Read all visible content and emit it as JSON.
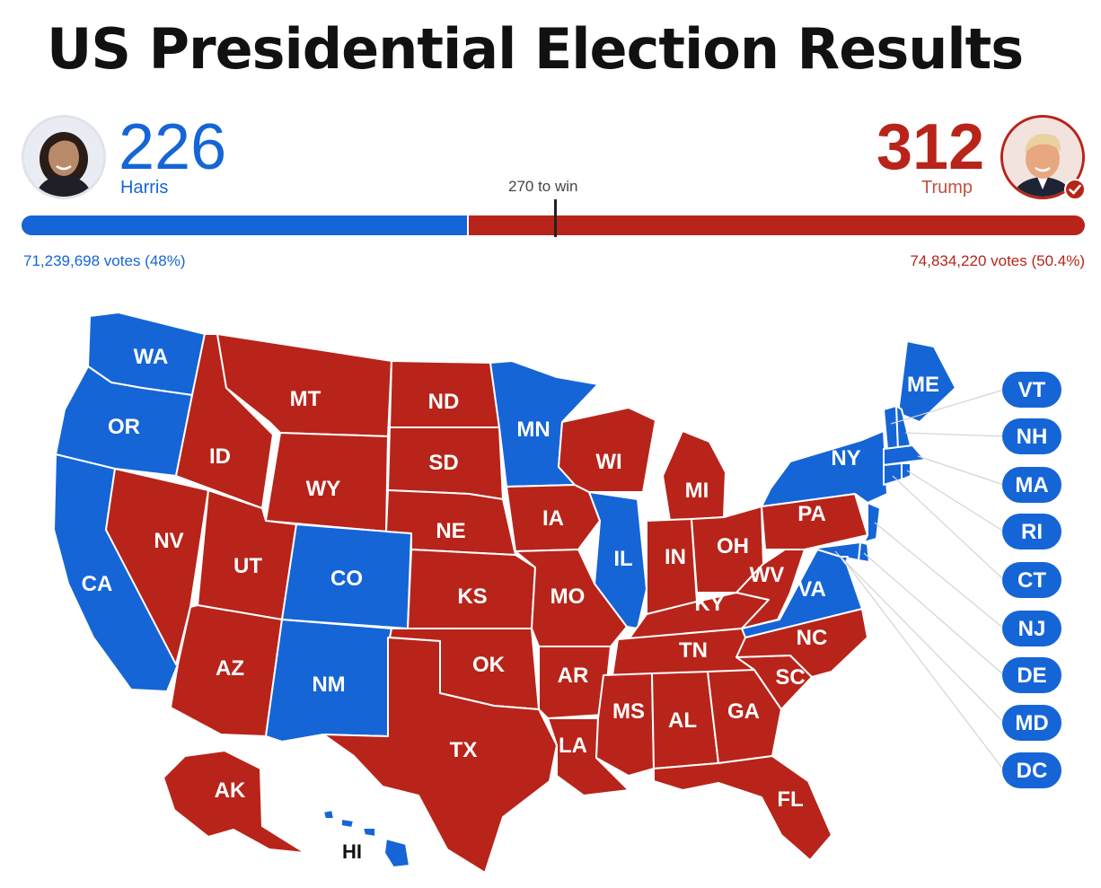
{
  "title": "US Presidential Election Results",
  "threshold_label": "270 to win",
  "colors": {
    "democrat": "#1565d6",
    "republican": "#b8241a"
  },
  "candidates": {
    "harris": {
      "name": "Harris",
      "electoral_votes": "226",
      "popular_votes": "71,239,698 votes (48%)"
    },
    "trump": {
      "name": "Trump",
      "electoral_votes": "312",
      "popular_votes": "74,834,220 votes (50.4%)",
      "winner_badge": "checkmark-icon"
    }
  },
  "states": {
    "WA": "D",
    "OR": "D",
    "CA": "D",
    "NV": "R",
    "ID": "R",
    "MT": "R",
    "WY": "R",
    "UT": "R",
    "AZ": "R",
    "CO": "D",
    "NM": "D",
    "ND": "R",
    "SD": "R",
    "NE": "R",
    "KS": "R",
    "OK": "R",
    "TX": "R",
    "MN": "D",
    "IA": "R",
    "MO": "R",
    "AR": "R",
    "LA": "R",
    "WI": "R",
    "IL": "D",
    "MI": "R",
    "IN": "R",
    "OH": "R",
    "KY": "R",
    "TN": "R",
    "MS": "R",
    "AL": "R",
    "GA": "R",
    "FL": "R",
    "SC": "R",
    "NC": "R",
    "VA": "D",
    "WV": "R",
    "PA": "R",
    "NY": "D",
    "ME": "D",
    "VT": "D",
    "NH": "D",
    "MA": "D",
    "RI": "D",
    "CT": "D",
    "NJ": "D",
    "DE": "D",
    "MD": "D",
    "DC": "D",
    "AK": "R",
    "HI": "D"
  },
  "map_labels": {
    "WA": "WA",
    "OR": "OR",
    "CA": "CA",
    "NV": "NV",
    "ID": "ID",
    "MT": "MT",
    "WY": "WY",
    "UT": "UT",
    "AZ": "AZ",
    "CO": "CO",
    "NM": "NM",
    "ND": "ND",
    "SD": "SD",
    "NE": "NE",
    "KS": "KS",
    "OK": "OK",
    "TX": "TX",
    "MN": "MN",
    "IA": "IA",
    "MO": "MO",
    "AR": "AR",
    "LA": "LA",
    "WI": "WI",
    "IL": "IL",
    "MI": "MI",
    "IN": "IN",
    "OH": "OH",
    "KY": "KY",
    "TN": "TN",
    "MS": "MS",
    "AL": "AL",
    "GA": "GA",
    "FL": "FL",
    "SC": "SC",
    "NC": "NC",
    "VA": "VA",
    "WV": "WV",
    "PA": "PA",
    "NY": "NY",
    "ME": "ME",
    "AK": "AK",
    "HI": "HI"
  },
  "callouts": [
    "VT",
    "NH",
    "MA",
    "RI",
    "CT",
    "NJ",
    "DE",
    "MD",
    "DC"
  ]
}
